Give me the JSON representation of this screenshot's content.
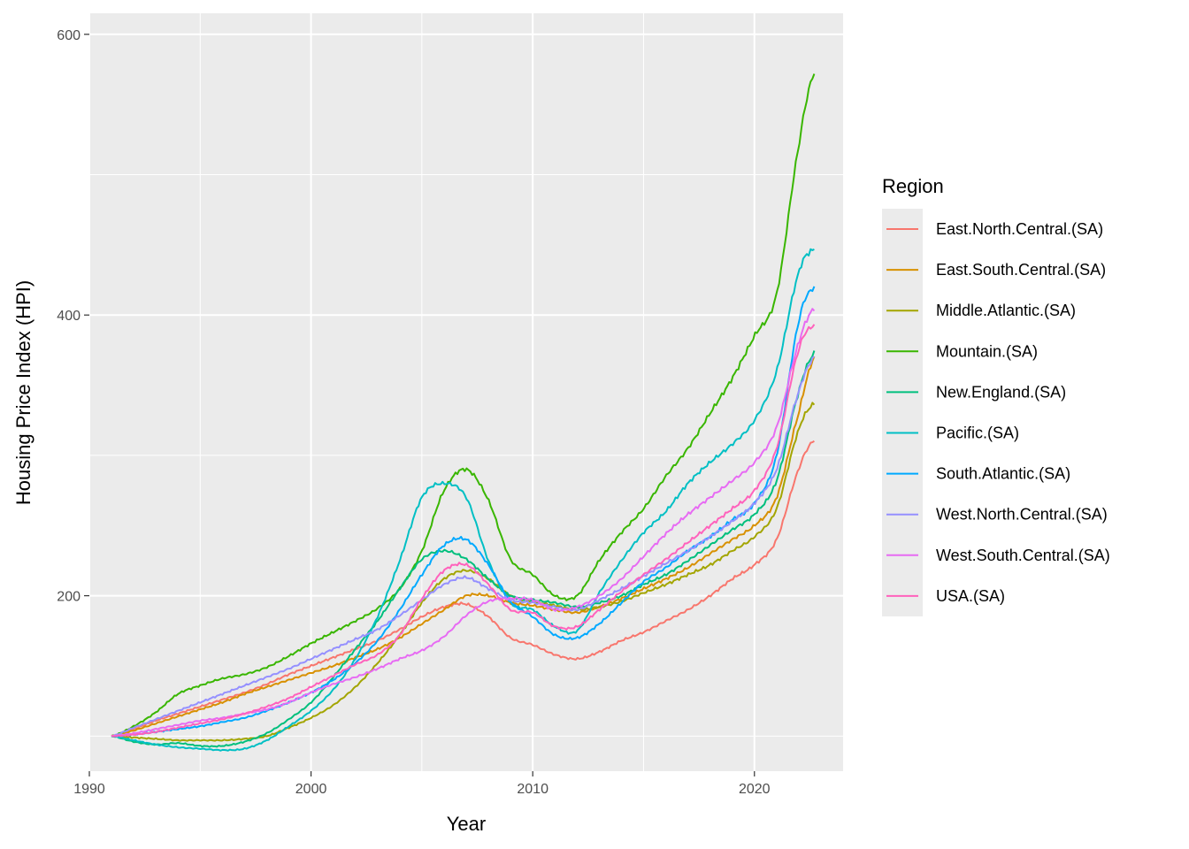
{
  "chart_data": {
    "type": "line",
    "title": "",
    "xlabel": "Year",
    "ylabel": "Housing Price Index (HPI)",
    "xlim": [
      1990,
      2024
    ],
    "ylim": [
      75,
      615
    ],
    "x_ticks": [
      1990,
      2000,
      2010,
      2020
    ],
    "y_ticks": [
      200,
      400,
      600
    ],
    "grid": true,
    "legend": {
      "title": "Region",
      "position": "right"
    },
    "x_knots": [
      1991,
      1992,
      1993,
      1994,
      1995,
      1996,
      1997,
      1998,
      1999,
      2000,
      2001,
      2002,
      2003,
      2004,
      2005,
      2006,
      2007,
      2008,
      2009,
      2010,
      2011,
      2012,
      2013,
      2014,
      2015,
      2016,
      2017,
      2018,
      2019,
      2020,
      2021,
      2022,
      2022.7
    ],
    "series": [
      {
        "name": "East.North.Central.(SA)",
        "color": "#F8766D",
        "values": [
          100,
          105,
          111,
          116,
          121,
          126,
          131,
          137,
          144,
          150,
          156,
          162,
          168,
          176,
          185,
          192,
          194,
          185,
          170,
          165,
          158,
          155,
          160,
          168,
          174,
          182,
          190,
          200,
          212,
          222,
          240,
          290,
          311
        ]
      },
      {
        "name": "East.South.Central.(SA)",
        "color": "#D89000",
        "values": [
          100,
          104,
          109,
          114,
          119,
          124,
          130,
          135,
          140,
          145,
          150,
          156,
          162,
          170,
          180,
          190,
          200,
          200,
          195,
          193,
          190,
          188,
          192,
          198,
          205,
          212,
          220,
          230,
          240,
          250,
          270,
          330,
          370
        ]
      },
      {
        "name": "Middle.Atlantic.(SA)",
        "color": "#A3A500",
        "values": [
          100,
          99,
          98,
          97,
          97,
          97,
          98,
          100,
          106,
          113,
          122,
          135,
          152,
          172,
          195,
          212,
          218,
          212,
          200,
          196,
          193,
          190,
          192,
          196,
          202,
          208,
          215,
          222,
          232,
          242,
          262,
          318,
          337
        ]
      },
      {
        "name": "Mountain.(SA)",
        "color": "#39B600",
        "values": [
          100,
          107,
          117,
          130,
          136,
          141,
          144,
          149,
          157,
          166,
          174,
          182,
          191,
          205,
          232,
          275,
          290,
          268,
          226,
          215,
          200,
          200,
          225,
          245,
          262,
          285,
          305,
          330,
          355,
          385,
          415,
          520,
          573
        ]
      },
      {
        "name": "New.England.(SA)",
        "color": "#00BF7D",
        "values": [
          100,
          96,
          94,
          95,
          93,
          93,
          96,
          102,
          112,
          124,
          142,
          162,
          182,
          205,
          226,
          232,
          226,
          212,
          200,
          197,
          195,
          192,
          195,
          200,
          208,
          215,
          225,
          236,
          247,
          258,
          282,
          345,
          373
        ]
      },
      {
        "name": "Pacific.(SA)",
        "color": "#00BFC4",
        "values": [
          100,
          97,
          94,
          92,
          91,
          90,
          91,
          97,
          107,
          118,
          133,
          155,
          185,
          225,
          270,
          280,
          270,
          225,
          195,
          190,
          178,
          175,
          202,
          225,
          245,
          260,
          280,
          295,
          308,
          325,
          360,
          430,
          447
        ]
      },
      {
        "name": "South.Atlantic.(SA)",
        "color": "#00A9FF",
        "values": [
          100,
          101,
          103,
          105,
          107,
          110,
          113,
          118,
          124,
          131,
          140,
          152,
          168,
          190,
          215,
          236,
          240,
          222,
          196,
          185,
          172,
          170,
          180,
          195,
          210,
          220,
          232,
          242,
          254,
          266,
          300,
          395,
          420
        ]
      },
      {
        "name": "West.North.Central.(SA)",
        "color": "#9590FF",
        "values": [
          100,
          106,
          112,
          118,
          124,
          130,
          136,
          142,
          148,
          155,
          162,
          169,
          176,
          186,
          197,
          208,
          213,
          205,
          197,
          195,
          192,
          190,
          197,
          205,
          214,
          223,
          232,
          242,
          253,
          266,
          290,
          345,
          370
        ]
      },
      {
        "name": "West.South.Central.(SA)",
        "color": "#E76BF3",
        "values": [
          100,
          102,
          105,
          108,
          111,
          113,
          116,
          119,
          124,
          131,
          137,
          142,
          148,
          155,
          161,
          171,
          186,
          196,
          198,
          197,
          190,
          192,
          200,
          212,
          228,
          244,
          258,
          270,
          282,
          295,
          320,
          380,
          405
        ]
      },
      {
        "name": "USA.(SA)",
        "color": "#FF62BC",
        "values": [
          100,
          101,
          103,
          106,
          109,
          112,
          116,
          121,
          127,
          135,
          143,
          151,
          158,
          172,
          198,
          218,
          222,
          208,
          190,
          188,
          178,
          178,
          190,
          203,
          215,
          226,
          238,
          250,
          262,
          275,
          305,
          375,
          393
        ]
      }
    ]
  }
}
